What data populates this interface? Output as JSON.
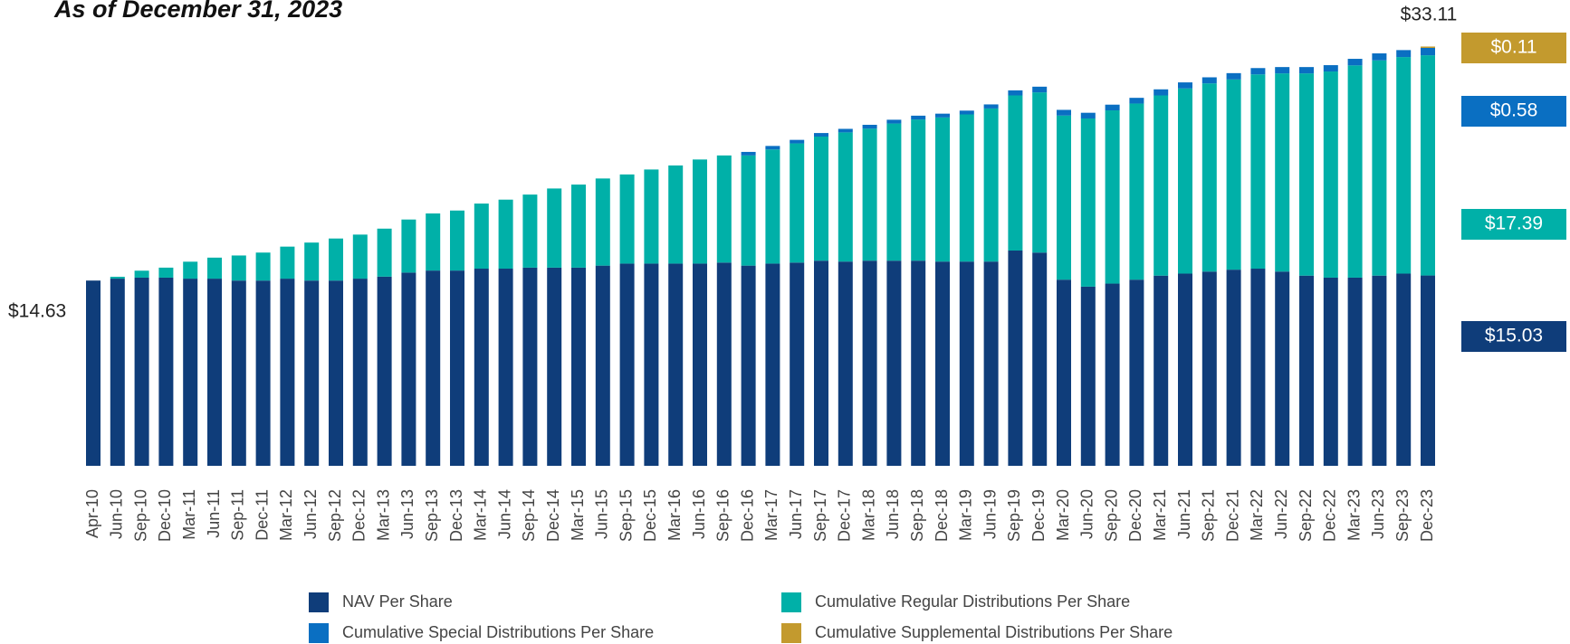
{
  "chart_data": {
    "type": "stacked_bar",
    "title": "As of December 31, 2023",
    "categories": [
      "Apr-10",
      "Jun-10",
      "Sep-10",
      "Dec-10",
      "Mar-11",
      "Jun-11",
      "Sep-11",
      "Dec-11",
      "Mar-12",
      "Jun-12",
      "Sep-12",
      "Dec-12",
      "Mar-13",
      "Jun-13",
      "Sep-13",
      "Dec-13",
      "Mar-14",
      "Jun-14",
      "Sep-14",
      "Dec-14",
      "Mar-15",
      "Jun-15",
      "Sep-15",
      "Dec-15",
      "Mar-16",
      "Jun-16",
      "Sep-16",
      "Dec-16",
      "Mar-17",
      "Jun-17",
      "Sep-17",
      "Dec-17",
      "Mar-18",
      "Jun-18",
      "Sep-18",
      "Dec-18",
      "Mar-19",
      "Jun-19",
      "Sep-19",
      "Dec-19",
      "Mar-20",
      "Jun-20",
      "Sep-20",
      "Dec-20",
      "Mar-21",
      "Jun-21",
      "Sep-21",
      "Dec-21",
      "Mar-22",
      "Jun-22",
      "Sep-22",
      "Dec-22",
      "Mar-23",
      "Jun-23",
      "Sep-23",
      "Dec-23"
    ],
    "series": [
      {
        "name": "NAV Per Share",
        "color": "#0f3d7a",
        "values": [
          14.63,
          14.78,
          14.86,
          14.86,
          14.78,
          14.78,
          14.63,
          14.63,
          14.78,
          14.63,
          14.63,
          14.78,
          14.94,
          15.26,
          15.42,
          15.42,
          15.57,
          15.57,
          15.65,
          15.65,
          15.65,
          15.81,
          15.97,
          15.97,
          15.97,
          15.97,
          16.05,
          15.81,
          15.97,
          16.05,
          16.2,
          16.13,
          16.2,
          16.2,
          16.2,
          16.13,
          16.13,
          16.13,
          17.0,
          16.84,
          14.7,
          14.15,
          14.39,
          14.7,
          15.02,
          15.18,
          15.34,
          15.49,
          15.57,
          15.34,
          15.02,
          14.86,
          14.86,
          15.02,
          15.18,
          15.03
        ],
        "value_labels": [
          "$14.63",
          null,
          null,
          null,
          null,
          null,
          null,
          null,
          null,
          null,
          null,
          null,
          null,
          null,
          null,
          null,
          null,
          null,
          null,
          null,
          null,
          null,
          null,
          null,
          null,
          null,
          null,
          null,
          null,
          null,
          null,
          null,
          null,
          null,
          null,
          null,
          null,
          null,
          null,
          null,
          null,
          null,
          null,
          null,
          null,
          null,
          null,
          null,
          null,
          null,
          null,
          null,
          null,
          null,
          null,
          "$15.03"
        ]
      },
      {
        "name": "Cumulative Regular Distributions Per Share",
        "color": "#00b0a8",
        "values": [
          0,
          0.15,
          0.55,
          0.79,
          1.34,
          1.66,
          1.98,
          2.21,
          2.53,
          3.0,
          3.32,
          3.48,
          3.79,
          4.19,
          4.51,
          4.74,
          5.14,
          5.45,
          5.77,
          6.25,
          6.56,
          6.88,
          7.04,
          7.43,
          7.75,
          8.22,
          8.46,
          8.7,
          9.01,
          9.41,
          9.8,
          10.2,
          10.43,
          10.83,
          11.15,
          11.38,
          11.62,
          12.09,
          12.25,
          12.65,
          12.96,
          13.28,
          13.68,
          13.91,
          14.23,
          14.62,
          14.86,
          15.02,
          15.34,
          15.65,
          15.97,
          16.28,
          16.76,
          17.0,
          17.1,
          17.39
        ],
        "value_labels": [
          null,
          null,
          null,
          null,
          null,
          null,
          null,
          null,
          null,
          null,
          null,
          null,
          null,
          null,
          null,
          null,
          null,
          null,
          null,
          null,
          null,
          null,
          null,
          null,
          null,
          null,
          null,
          null,
          null,
          null,
          null,
          null,
          null,
          null,
          null,
          null,
          null,
          null,
          null,
          null,
          null,
          null,
          null,
          null,
          null,
          null,
          null,
          null,
          null,
          null,
          null,
          null,
          null,
          null,
          null,
          "$17.39"
        ]
      },
      {
        "name": "Cumulative Special Distributions Per Share",
        "color": "#0a6fc2",
        "values": [
          0,
          0,
          0,
          0,
          0,
          0,
          0,
          0,
          0,
          0,
          0,
          0,
          0,
          0,
          0,
          0,
          0,
          0,
          0,
          0,
          0,
          0,
          0,
          0,
          0,
          0,
          0,
          0.28,
          0.28,
          0.28,
          0.28,
          0.28,
          0.3,
          0.3,
          0.3,
          0.3,
          0.3,
          0.32,
          0.4,
          0.45,
          0.45,
          0.45,
          0.45,
          0.45,
          0.48,
          0.48,
          0.48,
          0.5,
          0.5,
          0.5,
          0.5,
          0.5,
          0.52,
          0.55,
          0.55,
          0.58
        ],
        "value_labels": [
          null,
          null,
          null,
          null,
          null,
          null,
          null,
          null,
          null,
          null,
          null,
          null,
          null,
          null,
          null,
          null,
          null,
          null,
          null,
          null,
          null,
          null,
          null,
          null,
          null,
          null,
          null,
          null,
          null,
          null,
          null,
          null,
          null,
          null,
          null,
          null,
          null,
          null,
          null,
          null,
          null,
          null,
          null,
          null,
          null,
          null,
          null,
          null,
          null,
          null,
          null,
          null,
          null,
          null,
          null,
          "$0.58"
        ]
      },
      {
        "name": "Cumulative Supplemental Distributions Per Share",
        "color": "#c39a2e",
        "values": [
          0,
          0,
          0,
          0,
          0,
          0,
          0,
          0,
          0,
          0,
          0,
          0,
          0,
          0,
          0,
          0,
          0,
          0,
          0,
          0,
          0,
          0,
          0,
          0,
          0,
          0,
          0,
          0,
          0,
          0,
          0,
          0,
          0,
          0,
          0,
          0,
          0,
          0,
          0,
          0,
          0,
          0,
          0,
          0,
          0,
          0,
          0,
          0,
          0,
          0,
          0,
          0,
          0,
          0,
          0,
          0.11
        ],
        "value_labels": [
          null,
          null,
          null,
          null,
          null,
          null,
          null,
          null,
          null,
          null,
          null,
          null,
          null,
          null,
          null,
          null,
          null,
          null,
          null,
          null,
          null,
          null,
          null,
          null,
          null,
          null,
          null,
          null,
          null,
          null,
          null,
          null,
          null,
          null,
          null,
          null,
          null,
          null,
          null,
          null,
          null,
          null,
          null,
          null,
          null,
          null,
          null,
          null,
          null,
          null,
          null,
          null,
          null,
          null,
          null,
          "$0.11"
        ]
      }
    ],
    "total": {
      "value": 33.11,
      "label": "$33.11"
    },
    "ylim": [
      0,
      35
    ]
  }
}
